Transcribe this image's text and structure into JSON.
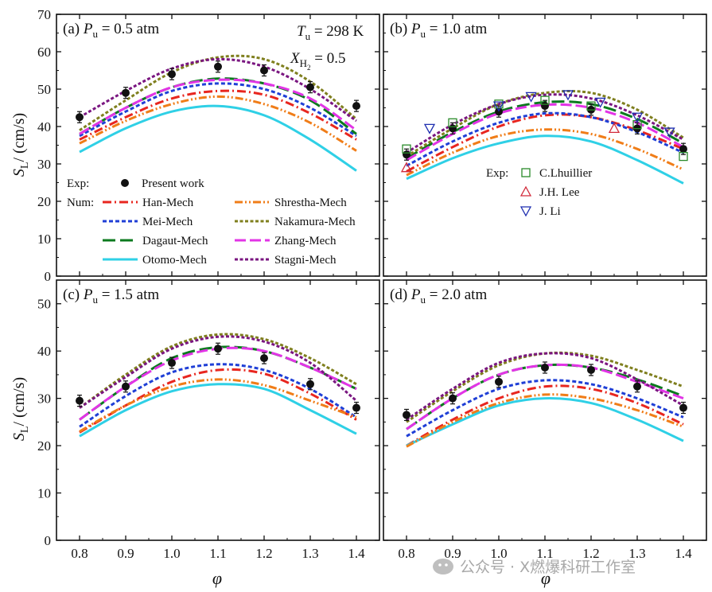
{
  "figure": {
    "xlabel": "φ",
    "ylabel_main": "S",
    "ylabel_sub": "L",
    "ylabel_unit": "/ (cm/s)",
    "conditions_line1_main": "T",
    "conditions_line1_sub": "u",
    "conditions_line1_rest": " = 298 K",
    "conditions_line2_main": "X",
    "conditions_line2_sub": "H",
    "conditions_line2_subsub": "2",
    "conditions_line2_rest": " = 0.5",
    "watermark_text": "公众号 · X燃爆科研工作室",
    "legend_exp_label": "Exp:",
    "legend_num_label": "Num:",
    "legend_present": "Present work",
    "legend_exp_b": [
      "C.Lhuillier",
      "J.H. Lee",
      "J. Li"
    ],
    "colors": {
      "Han-Mech": "#e8261f",
      "Mei-Mech": "#1f3fd6",
      "Dagaut-Mech": "#0b7a1e",
      "Otomo-Mech": "#2fd0e6",
      "Shrestha-Mech": "#f07d18",
      "Nakamura-Mech": "#7f7f1e",
      "Zhang-Mech": "#e234e6",
      "Stagni-Mech": "#7a1680",
      "C.Lhuillier": "#2a8a2a",
      "J.H. Lee": "#d22b3b",
      "J. Li": "#1f2fb0"
    }
  },
  "chart_data": [
    {
      "type": "line",
      "panel": "a",
      "tag": "(a)",
      "p_main": "P",
      "p_sub": "u",
      "p_rest": " = 0.5 atm",
      "xlim": [
        0.75,
        1.45
      ],
      "ylim": [
        0,
        70
      ],
      "x_ticks": [
        "0.8",
        "0.9",
        "1.0",
        "1.1",
        "1.2",
        "1.3",
        "1.4"
      ],
      "y_ticks": [
        "0",
        "10",
        "20",
        "30",
        "40",
        "50",
        "60",
        "70"
      ],
      "x": [
        0.8,
        0.9,
        1.0,
        1.1,
        1.2,
        1.3,
        1.4
      ],
      "series": [
        {
          "name": "Han-Mech",
          "values": [
            36.5,
            42.5,
            47.5,
            49.5,
            48.5,
            43.5,
            36.5
          ]
        },
        {
          "name": "Mei-Mech",
          "values": [
            37.5,
            44.0,
            49.5,
            51.5,
            50.0,
            45.0,
            37.5
          ]
        },
        {
          "name": "Dagaut-Mech",
          "values": [
            38.0,
            45.0,
            50.5,
            52.8,
            51.5,
            47.0,
            38.0
          ]
        },
        {
          "name": "Otomo-Mech",
          "values": [
            33.2,
            39.5,
            44.0,
            45.5,
            43.0,
            36.5,
            28.2
          ]
        },
        {
          "name": "Shrestha-Mech",
          "values": [
            35.5,
            41.5,
            46.0,
            48.0,
            46.0,
            41.0,
            33.5
          ]
        },
        {
          "name": "Nakamura-Mech",
          "values": [
            39.0,
            47.0,
            54.5,
            58.5,
            58.0,
            52.0,
            42.0
          ]
        },
        {
          "name": "Zhang-Mech",
          "values": [
            38.0,
            45.0,
            50.5,
            52.5,
            51.5,
            47.5,
            39.0
          ]
        },
        {
          "name": "Stagni-Mech",
          "values": [
            42.5,
            49.5,
            55.5,
            58.0,
            56.0,
            50.0,
            41.5
          ]
        }
      ],
      "experiments": [
        {
          "name": "Present work",
          "marker": "filled-circle",
          "points": [
            [
              0.8,
              42.5
            ],
            [
              0.9,
              49.0
            ],
            [
              1.0,
              54.0
            ],
            [
              1.1,
              56.0
            ],
            [
              1.2,
              55.0
            ],
            [
              1.3,
              50.5
            ],
            [
              1.4,
              45.5
            ]
          ]
        }
      ]
    },
    {
      "type": "line",
      "panel": "b",
      "tag": "(b)",
      "p_main": "P",
      "p_sub": "u",
      "p_rest": " = 1.0 atm",
      "xlim": [
        0.75,
        1.45
      ],
      "ylim": [
        0,
        70
      ],
      "x_ticks": [
        "0.8",
        "0.9",
        "1.0",
        "1.1",
        "1.2",
        "1.3",
        "1.4"
      ],
      "y_ticks": [],
      "x": [
        0.8,
        0.9,
        1.0,
        1.1,
        1.2,
        1.3,
        1.4
      ],
      "series": [
        {
          "name": "Han-Mech",
          "values": [
            28.0,
            34.5,
            40.0,
            43.0,
            42.5,
            39.0,
            34.0
          ]
        },
        {
          "name": "Mei-Mech",
          "values": [
            29.5,
            36.0,
            41.0,
            43.5,
            42.5,
            38.5,
            33.0
          ]
        },
        {
          "name": "Dagaut-Mech",
          "values": [
            31.5,
            38.5,
            44.0,
            46.5,
            46.0,
            42.0,
            35.5
          ]
        },
        {
          "name": "Otomo-Mech",
          "values": [
            26.0,
            31.5,
            35.5,
            37.5,
            36.0,
            31.0,
            24.8
          ]
        },
        {
          "name": "Shrestha-Mech",
          "values": [
            27.0,
            33.0,
            37.5,
            39.2,
            38.0,
            34.0,
            28.5
          ]
        },
        {
          "name": "Nakamura-Mech",
          "values": [
            32.0,
            39.5,
            46.0,
            49.0,
            49.0,
            44.5,
            37.0
          ]
        },
        {
          "name": "Zhang-Mech",
          "values": [
            31.0,
            38.0,
            43.5,
            45.8,
            45.0,
            41.0,
            34.5
          ]
        },
        {
          "name": "Stagni-Mech",
          "values": [
            33.0,
            40.5,
            46.0,
            48.5,
            47.5,
            43.0,
            36.5
          ]
        }
      ],
      "experiments": [
        {
          "name": "Present work",
          "marker": "filled-circle",
          "points": [
            [
              0.8,
              32.5
            ],
            [
              0.9,
              39.5
            ],
            [
              1.0,
              44.0
            ],
            [
              1.1,
              45.5
            ],
            [
              1.2,
              44.5
            ],
            [
              1.3,
              39.5
            ],
            [
              1.4,
              34.0
            ]
          ]
        },
        {
          "name": "C.Lhuillier",
          "marker": "open-square",
          "points": [
            [
              0.8,
              34.0
            ],
            [
              0.9,
              41.0
            ],
            [
              1.0,
              46.0
            ],
            [
              1.1,
              47.0
            ],
            [
              1.2,
              45.5
            ],
            [
              1.3,
              40.5
            ],
            [
              1.4,
              32.0
            ]
          ]
        },
        {
          "name": "J.H. Lee",
          "marker": "open-triangle-up",
          "points": [
            [
              0.8,
              29.0
            ],
            [
              1.25,
              39.5
            ]
          ]
        },
        {
          "name": "J. Li",
          "marker": "open-triangle-down",
          "points": [
            [
              0.85,
              39.5
            ],
            [
              1.0,
              45.5
            ],
            [
              1.07,
              48.0
            ],
            [
              1.15,
              48.5
            ],
            [
              1.22,
              46.5
            ],
            [
              1.3,
              42.5
            ],
            [
              1.37,
              38.5
            ]
          ]
        }
      ]
    },
    {
      "type": "line",
      "panel": "c",
      "tag": "(c)",
      "p_main": "P",
      "p_sub": "u",
      "p_rest": " = 1.5 atm",
      "xlim": [
        0.75,
        1.45
      ],
      "ylim": [
        0,
        55
      ],
      "x_ticks": [
        "0.8",
        "0.9",
        "1.0",
        "1.1",
        "1.2",
        "1.3",
        "1.4"
      ],
      "y_ticks": [
        "0",
        "10",
        "20",
        "30",
        "40",
        "50"
      ],
      "x": [
        0.8,
        0.9,
        1.0,
        1.1,
        1.2,
        1.3,
        1.4
      ],
      "series": [
        {
          "name": "Han-Mech",
          "values": [
            22.8,
            28.5,
            33.5,
            36.0,
            35.2,
            31.0,
            25.5
          ]
        },
        {
          "name": "Mei-Mech",
          "values": [
            24.0,
            30.5,
            35.5,
            37.2,
            36.0,
            32.0,
            26.0
          ]
        },
        {
          "name": "Dagaut-Mech",
          "values": [
            25.5,
            32.5,
            38.5,
            40.8,
            40.0,
            36.5,
            32.0
          ]
        },
        {
          "name": "Otomo-Mech",
          "values": [
            22.0,
            27.5,
            31.5,
            33.0,
            32.0,
            27.5,
            22.5
          ]
        },
        {
          "name": "Shrestha-Mech",
          "values": [
            23.0,
            28.5,
            32.5,
            34.0,
            32.8,
            29.5,
            26.0
          ]
        },
        {
          "name": "Nakamura-Mech",
          "values": [
            28.0,
            35.0,
            41.0,
            43.5,
            42.5,
            38.5,
            33.0
          ]
        },
        {
          "name": "Zhang-Mech",
          "values": [
            25.5,
            32.5,
            38.0,
            40.5,
            40.0,
            36.5,
            32.0
          ]
        },
        {
          "name": "Stagni-Mech",
          "values": [
            28.0,
            34.5,
            40.5,
            43.0,
            42.0,
            37.5,
            29.5
          ]
        }
      ],
      "experiments": [
        {
          "name": "Present work",
          "marker": "filled-circle",
          "points": [
            [
              0.8,
              29.5
            ],
            [
              0.9,
              32.5
            ],
            [
              1.0,
              37.5
            ],
            [
              1.1,
              40.5
            ],
            [
              1.2,
              38.5
            ],
            [
              1.3,
              33.0
            ],
            [
              1.4,
              28.0
            ]
          ]
        }
      ]
    },
    {
      "type": "line",
      "panel": "d",
      "tag": "(d)",
      "p_main": "P",
      "p_sub": "u",
      "p_rest": " = 2.0 atm",
      "xlim": [
        0.75,
        1.45
      ],
      "ylim": [
        0,
        55
      ],
      "x_ticks": [
        "0.8",
        "0.9",
        "1.0",
        "1.1",
        "1.2",
        "1.3",
        "1.4"
      ],
      "y_ticks": [],
      "x": [
        0.8,
        0.9,
        1.0,
        1.1,
        1.2,
        1.3,
        1.4
      ],
      "series": [
        {
          "name": "Han-Mech",
          "values": [
            20.0,
            25.5,
            30.0,
            32.5,
            32.0,
            29.0,
            24.5
          ]
        },
        {
          "name": "Mei-Mech",
          "values": [
            22.0,
            27.5,
            32.0,
            33.8,
            33.0,
            30.0,
            26.0
          ]
        },
        {
          "name": "Dagaut-Mech",
          "values": [
            23.5,
            30.0,
            35.0,
            37.0,
            36.5,
            34.0,
            30.5
          ]
        },
        {
          "name": "Otomo-Mech",
          "values": [
            20.0,
            24.5,
            28.5,
            30.0,
            29.0,
            25.5,
            21.0
          ]
        },
        {
          "name": "Shrestha-Mech",
          "values": [
            19.8,
            25.0,
            29.0,
            30.8,
            30.0,
            27.5,
            24.0
          ]
        },
        {
          "name": "Nakamura-Mech",
          "values": [
            25.0,
            31.5,
            37.0,
            39.5,
            39.0,
            36.0,
            32.5
          ]
        },
        {
          "name": "Zhang-Mech",
          "values": [
            23.5,
            30.0,
            35.0,
            37.0,
            36.5,
            33.5,
            30.0
          ]
        },
        {
          "name": "Stagni-Mech",
          "values": [
            25.5,
            32.0,
            37.5,
            39.5,
            38.5,
            34.0,
            28.5
          ]
        }
      ],
      "experiments": [
        {
          "name": "Present work",
          "marker": "filled-circle",
          "points": [
            [
              0.8,
              26.5
            ],
            [
              0.9,
              30.0
            ],
            [
              1.0,
              33.5
            ],
            [
              1.1,
              36.5
            ],
            [
              1.2,
              36.0
            ],
            [
              1.3,
              32.5
            ],
            [
              1.4,
              28.0
            ]
          ]
        }
      ]
    }
  ]
}
